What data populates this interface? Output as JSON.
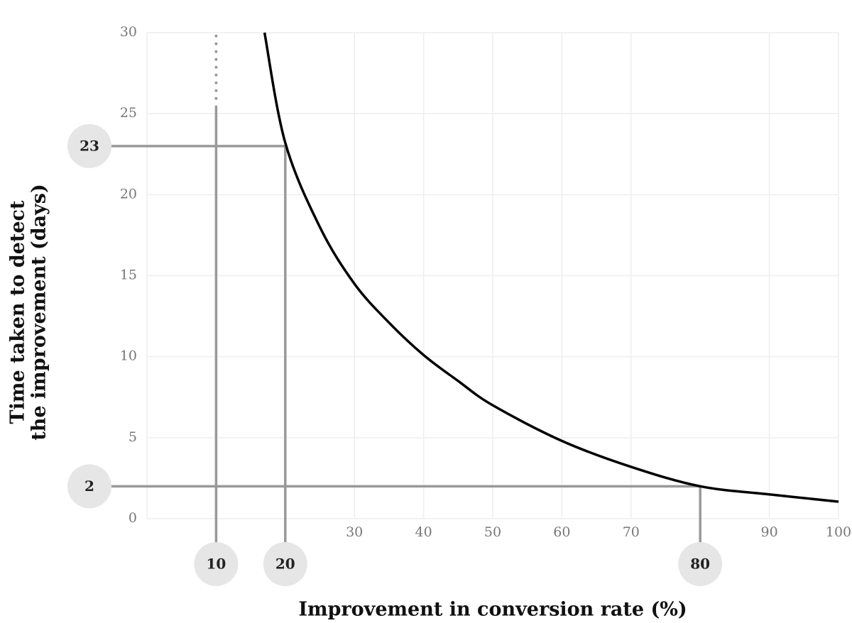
{
  "chart_data": {
    "type": "line",
    "xlabel": "Improvement in conversion rate (%)",
    "ylabel": [
      "Time taken to detect",
      "the improvement (days)"
    ],
    "x": [
      17,
      20,
      25,
      30,
      35,
      40,
      45,
      50,
      60,
      70,
      80,
      90,
      100
    ],
    "series": [
      {
        "color": "#000000",
        "values": [
          30,
          23.2,
          18,
          14.5,
          12.1,
          10.1,
          8.5,
          7,
          4.8,
          3.2,
          2,
          1.5,
          1.05
        ]
      }
    ],
    "xlim": [
      0,
      100
    ],
    "ylim": [
      0,
      30
    ],
    "xticks": [
      30,
      40,
      50,
      60,
      70,
      90,
      100
    ],
    "yticks": [
      0,
      5,
      10,
      15,
      20,
      25,
      30
    ],
    "grid": true,
    "guides": [
      {
        "x": 10
      },
      {
        "x": 20,
        "y": 23
      },
      {
        "x": 80,
        "y": 2
      }
    ]
  }
}
